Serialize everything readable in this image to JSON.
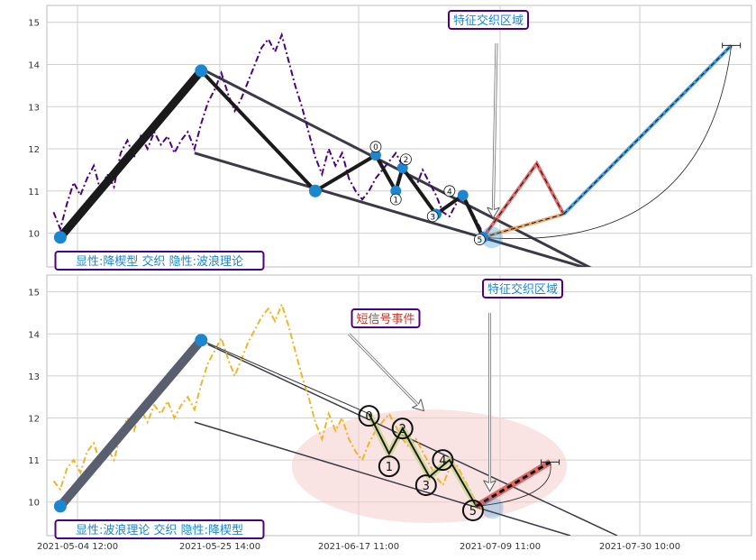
{
  "colors": {
    "grid": "#cfcfcf",
    "frame": "#bdbdbd",
    "top_price": "#4b0082",
    "bottom_price": "#f0b429",
    "wave": "#1a1a1a",
    "node": "#1c86d1",
    "trend": "#3a3a46",
    "label_border": "#4b0082",
    "label_text": "#1c86d1",
    "event_text": "#c0392b",
    "ellipse": "#f4cccc",
    "forecast_red": "#d9534f",
    "forecast_orange": "#e89b5a",
    "forecast_blue": "#2b8cd6"
  },
  "chart_data": [
    {
      "type": "line",
      "panel": "top",
      "title": "",
      "x_ticks": [],
      "y_ticks": [
        10,
        11,
        12,
        13,
        14,
        15
      ],
      "ylim": [
        9.2,
        15.4
      ],
      "xlim": [
        0,
        105
      ],
      "grid": true,
      "price_series": [
        [
          1,
          10.5
        ],
        [
          2,
          10.1
        ],
        [
          3,
          10.7
        ],
        [
          4,
          11.2
        ],
        [
          5,
          10.9
        ],
        [
          6,
          11.3
        ],
        [
          7,
          11.6
        ],
        [
          8,
          11.0
        ],
        [
          9,
          11.4
        ],
        [
          10,
          11.1
        ],
        [
          11,
          11.9
        ],
        [
          12,
          12.2
        ],
        [
          13,
          11.8
        ],
        [
          14,
          12.3
        ],
        [
          15,
          12.0
        ],
        [
          16,
          12.4
        ],
        [
          17,
          12.1
        ],
        [
          18,
          12.3
        ],
        [
          19,
          11.9
        ],
        [
          20,
          12.2
        ],
        [
          21,
          12.4
        ],
        [
          22,
          12.0
        ],
        [
          23,
          12.6
        ],
        [
          24,
          13.1
        ],
        [
          25,
          13.4
        ],
        [
          26,
          13.8
        ],
        [
          27,
          13.3
        ],
        [
          28,
          12.9
        ],
        [
          29,
          13.2
        ],
        [
          30,
          13.6
        ],
        [
          31,
          14.0
        ],
        [
          32,
          14.4
        ],
        [
          33,
          14.6
        ],
        [
          34,
          14.3
        ],
        [
          35,
          14.7
        ],
        [
          36,
          14.1
        ],
        [
          37,
          13.5
        ],
        [
          38,
          13.0
        ],
        [
          39,
          12.4
        ],
        [
          40,
          11.8
        ],
        [
          41,
          11.4
        ],
        [
          42,
          12.0
        ],
        [
          43,
          11.6
        ],
        [
          44,
          11.9
        ],
        [
          45,
          11.3
        ],
        [
          46,
          11.0
        ],
        [
          47,
          10.8
        ],
        [
          48,
          11.0
        ],
        [
          49,
          11.3
        ],
        [
          50,
          11.5
        ],
        [
          51,
          11.7
        ],
        [
          52,
          11.9
        ],
        [
          53,
          11.6
        ],
        [
          54,
          11.3
        ],
        [
          55,
          11.1
        ],
        [
          56,
          11.5
        ],
        [
          57,
          11.2
        ],
        [
          58,
          10.9
        ],
        [
          59,
          10.5
        ],
        [
          60,
          10.4
        ],
        [
          61,
          10.7
        ],
        [
          62,
          10.9
        ],
        [
          63,
          10.6
        ],
        [
          64,
          10.3
        ],
        [
          65,
          10.0
        ],
        [
          66,
          9.9
        ]
      ],
      "wave_path": [
        [
          2,
          9.9
        ],
        [
          23,
          13.85
        ],
        [
          40,
          11.0
        ],
        [
          49,
          11.85
        ],
        [
          52,
          11.0
        ],
        [
          53,
          11.55
        ],
        [
          58,
          10.45
        ],
        [
          62,
          10.9
        ],
        [
          65,
          9.9
        ]
      ],
      "wave_labels": [
        {
          "text": "0",
          "x": 49,
          "y": 12.05
        },
        {
          "text": "1",
          "x": 52,
          "y": 10.8
        },
        {
          "text": "2",
          "x": 53.5,
          "y": 11.75
        },
        {
          "text": "3",
          "x": 57.5,
          "y": 10.4
        },
        {
          "text": "4",
          "x": 60,
          "y": 11.0
        },
        {
          "text": "5",
          "x": 64.5,
          "y": 9.85
        }
      ],
      "trend_lines": [
        [
          [
            23,
            13.9
          ],
          [
            82,
            9.1
          ]
        ],
        [
          [
            22,
            11.9
          ],
          [
            82,
            9.1
          ]
        ]
      ],
      "forecast": {
        "red": [
          [
            65,
            9.9
          ],
          [
            73,
            11.65
          ],
          [
            77,
            10.45
          ]
        ],
        "orange": [
          [
            65,
            9.9
          ],
          [
            77,
            10.45
          ]
        ],
        "blue": [
          [
            77,
            10.45
          ],
          [
            102,
            14.45
          ]
        ],
        "marker": [
          102,
          14.45
        ]
      },
      "annotation_arrow": {
        "from": [
          67,
          14.5
        ],
        "to": [
          66.5,
          10.4
        ]
      },
      "labels": {
        "region": "特征交织区域",
        "pattern": "显性:降楔型 交织 隐性:波浪理论"
      }
    },
    {
      "type": "line",
      "panel": "bottom",
      "title": "",
      "x_ticks": [
        "2021-05-04 12:00",
        "2021-05-25 14:00",
        "2021-06-17 11:00",
        "2021-07-09 11:00",
        "2021-07-30 10:00"
      ],
      "y_ticks": [
        10,
        11,
        12,
        13,
        14,
        15
      ],
      "ylim": [
        9.2,
        15.4
      ],
      "xlim": [
        0,
        105
      ],
      "grid": true,
      "price_series": [
        [
          1,
          10.5
        ],
        [
          2,
          10.3
        ],
        [
          3,
          10.8
        ],
        [
          4,
          11.0
        ],
        [
          5,
          10.7
        ],
        [
          6,
          11.2
        ],
        [
          7,
          11.4
        ],
        [
          8,
          10.9
        ],
        [
          9,
          11.3
        ],
        [
          10,
          11.0
        ],
        [
          11,
          11.6
        ],
        [
          12,
          12.0
        ],
        [
          13,
          11.7
        ],
        [
          14,
          12.2
        ],
        [
          15,
          11.9
        ],
        [
          16,
          12.3
        ],
        [
          17,
          12.1
        ],
        [
          18,
          12.4
        ],
        [
          19,
          12.0
        ],
        [
          20,
          12.3
        ],
        [
          21,
          12.5
        ],
        [
          22,
          12.2
        ],
        [
          23,
          12.8
        ],
        [
          24,
          13.3
        ],
        [
          25,
          13.6
        ],
        [
          26,
          13.9
        ],
        [
          27,
          13.4
        ],
        [
          28,
          13.0
        ],
        [
          29,
          13.4
        ],
        [
          30,
          13.8
        ],
        [
          31,
          14.1
        ],
        [
          32,
          14.4
        ],
        [
          33,
          14.6
        ],
        [
          34,
          14.3
        ],
        [
          35,
          14.7
        ],
        [
          36,
          14.2
        ],
        [
          37,
          13.6
        ],
        [
          38,
          13.0
        ],
        [
          39,
          12.5
        ],
        [
          40,
          11.9
        ],
        [
          41,
          11.5
        ],
        [
          42,
          12.1
        ],
        [
          43,
          11.7
        ],
        [
          44,
          12.0
        ],
        [
          45,
          11.5
        ],
        [
          46,
          11.2
        ],
        [
          47,
          11.0
        ],
        [
          48,
          11.4
        ],
        [
          49,
          11.7
        ],
        [
          50,
          11.9
        ],
        [
          51,
          12.1
        ],
        [
          52,
          11.8
        ],
        [
          53,
          11.5
        ],
        [
          54,
          11.3
        ],
        [
          55,
          11.5
        ],
        [
          56,
          11.2
        ],
        [
          57,
          10.9
        ],
        [
          58,
          10.6
        ],
        [
          59,
          10.4
        ],
        [
          60,
          10.8
        ],
        [
          61,
          10.9
        ],
        [
          62,
          10.6
        ],
        [
          63,
          10.3
        ],
        [
          64,
          10.0
        ],
        [
          65,
          9.8
        ]
      ],
      "wave_path": [
        [
          2,
          9.9
        ],
        [
          23,
          13.85
        ],
        [
          48,
          12.1
        ],
        [
          51,
          11.15
        ],
        [
          53,
          11.75
        ],
        [
          57,
          10.6
        ],
        [
          60,
          11.0
        ],
        [
          64,
          9.9
        ]
      ],
      "wave_labels": [
        {
          "text": "0",
          "x": 48,
          "y": 12.05
        },
        {
          "text": "1",
          "x": 51,
          "y": 10.85
        },
        {
          "text": "2",
          "x": 53,
          "y": 11.75
        },
        {
          "text": "3",
          "x": 56.5,
          "y": 10.4
        },
        {
          "text": "4",
          "x": 59,
          "y": 11.0
        },
        {
          "text": "5",
          "x": 63.5,
          "y": 9.8
        }
      ],
      "trend_lines": [
        [
          [
            24,
            13.75
          ],
          [
            85,
            9.2
          ]
        ],
        [
          [
            22,
            11.9
          ],
          [
            78,
            9.2
          ]
        ]
      ],
      "forecast": {
        "red": [
          [
            64,
            9.9
          ],
          [
            75,
            10.95
          ]
        ],
        "marker": [
          75,
          10.95
        ]
      },
      "ellipse": {
        "cx": 57,
        "cy": 10.85,
        "rx": 20.5,
        "ry": 1.35
      },
      "annotation_arrows": [
        {
          "from": [
            45,
            14.0
          ],
          "to": [
            56,
            12.2
          ]
        },
        {
          "from": [
            66,
            14.5
          ],
          "to": [
            66,
            10.3
          ]
        }
      ],
      "labels": {
        "region": "特征交织区域",
        "event": "短信号事件",
        "pattern": "显性:波浪理论 交织 隐性:降楔型"
      }
    }
  ]
}
